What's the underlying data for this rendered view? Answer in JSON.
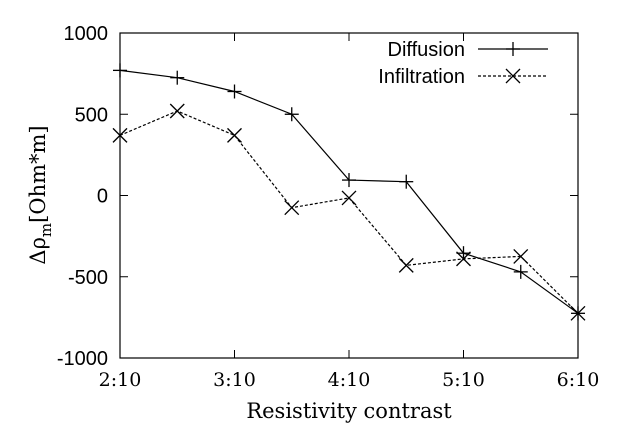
{
  "chart_data": {
    "type": "line",
    "title": "",
    "xlabel": "Resistivity contrast",
    "ylabel_parts": {
      "prefix": "Δρ",
      "subscript": "m",
      "suffix": "[Ohm*m]"
    },
    "xlim": [
      0,
      8
    ],
    "ylim": [
      -1000,
      1000
    ],
    "y_ticks": [
      1000,
      500,
      0,
      -500,
      -1000
    ],
    "y_tick_labels": [
      "1000",
      "500",
      "0",
      "-500",
      "-1000"
    ],
    "x_ticks": [
      0,
      2,
      4,
      6,
      8
    ],
    "x_tick_labels": [
      "2:10",
      "3:10",
      "4:10",
      "5:10",
      "6:10"
    ],
    "legend_position": "top-right",
    "series": [
      {
        "name": "Diffusion",
        "style": "solid",
        "marker": "plus",
        "x": [
          0,
          1,
          2,
          3,
          4,
          5,
          6,
          7,
          8
        ],
        "y": [
          770,
          725,
          640,
          500,
          95,
          85,
          -355,
          -470,
          -725
        ]
      },
      {
        "name": "Infiltration",
        "style": "dashed",
        "marker": "cross",
        "x": [
          0,
          1,
          2,
          3,
          4,
          5,
          6,
          7,
          8
        ],
        "y": [
          370,
          520,
          370,
          -75,
          -15,
          -430,
          -390,
          -375,
          -725
        ]
      }
    ]
  }
}
